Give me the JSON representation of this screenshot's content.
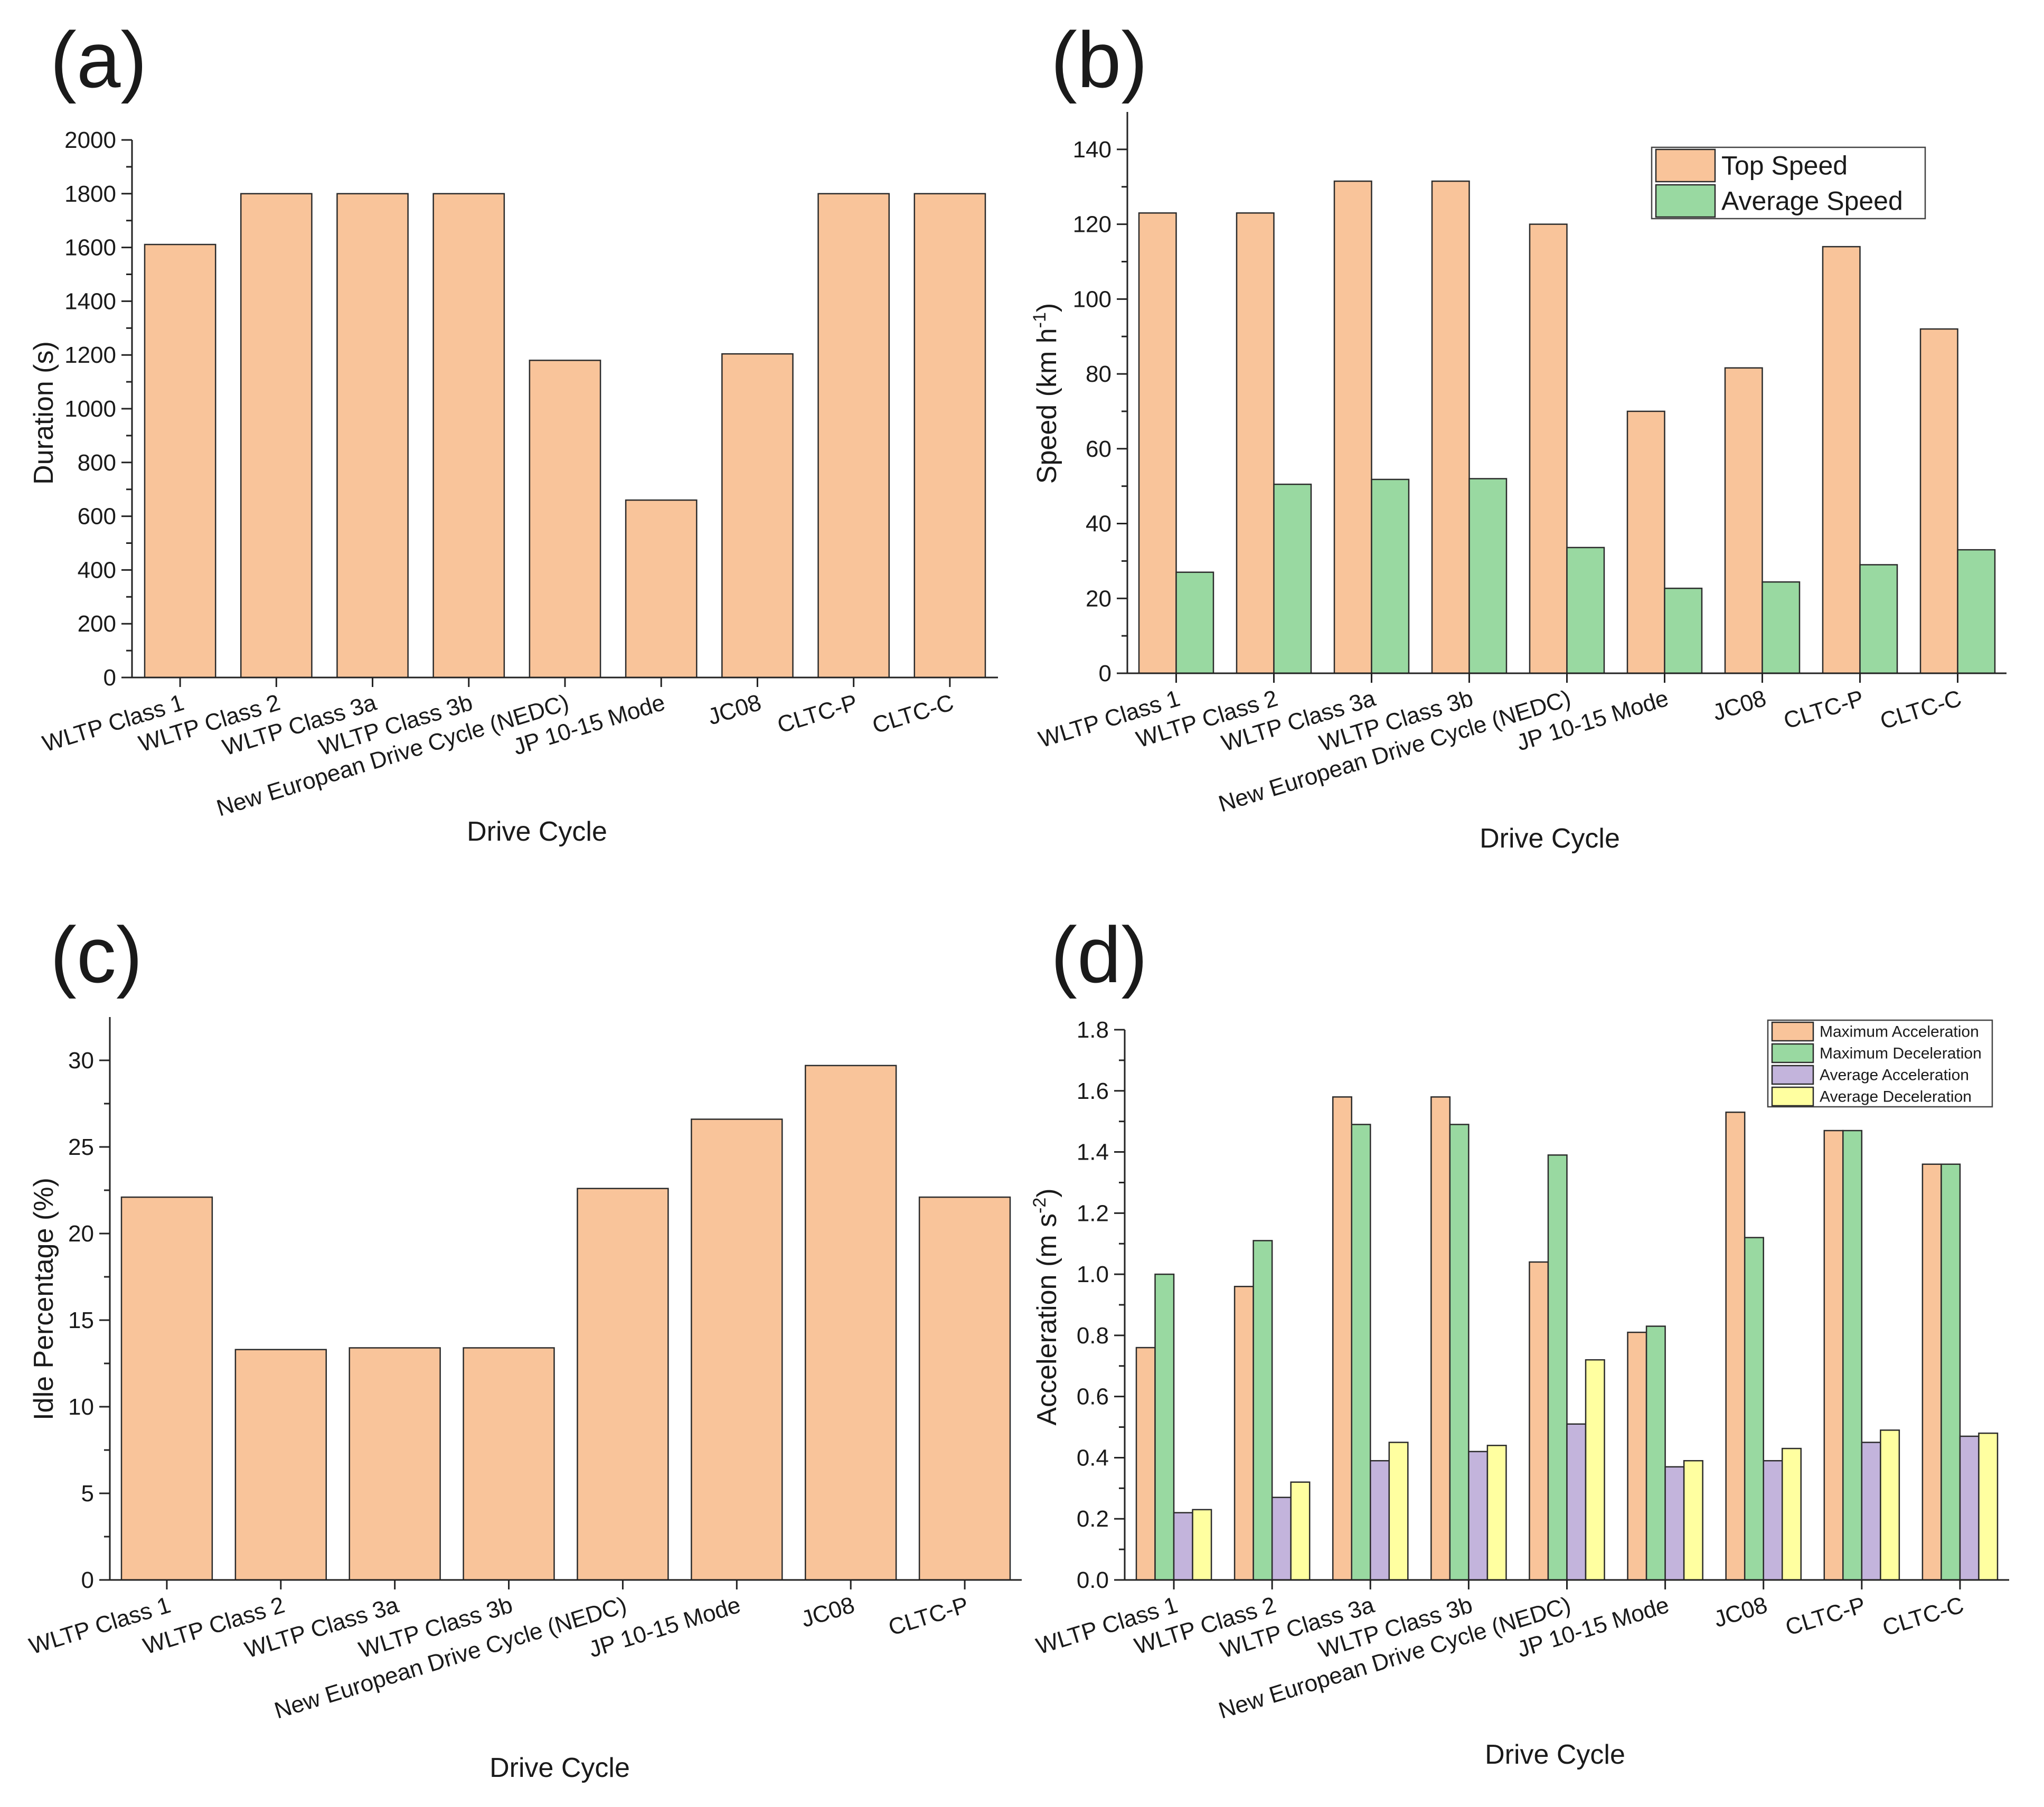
{
  "chart_data": [
    {
      "panel": "(a)",
      "type": "bar",
      "categories": [
        "WLTP Class 1",
        "WLTP Class 2",
        "WLTP Class 3a",
        "WLTP Class 3b",
        "New European Drive Cycle (NEDC)",
        "JP 10-15 Mode",
        "JC08",
        "CLTC-P",
        "CLTC-C"
      ],
      "series": [
        {
          "name": "Duration",
          "color": "#F9C49A",
          "values": [
            1611,
            1800,
            1800,
            1800,
            1180,
            660,
            1204,
            1800,
            1800
          ]
        }
      ],
      "xlabel": "Drive Cycle",
      "ylabel": "Duration (s)",
      "ylim": [
        0,
        2000
      ],
      "yticks": [
        "0",
        "200",
        "400",
        "600",
        "800",
        "1000",
        "1200",
        "1400",
        "1600",
        "1800",
        "2000"
      ],
      "ytick_step": 200,
      "legend": null
    },
    {
      "panel": "(b)",
      "type": "bar",
      "categories": [
        "WLTP Class 1",
        "WLTP Class 2",
        "WLTP Class 3a",
        "WLTP Class 3b",
        "New European Drive Cycle (NEDC)",
        "JP 10-15 Mode",
        "JC08",
        "CLTC-P",
        "CLTC-C"
      ],
      "series": [
        {
          "name": "Top Speed",
          "color": "#F9C49A",
          "values": [
            123,
            123,
            131.5,
            131.5,
            120,
            70,
            81.6,
            114,
            92
          ]
        },
        {
          "name": "Average Speed",
          "color": "#99D9A1",
          "values": [
            27,
            50.5,
            51.8,
            52,
            33.6,
            22.7,
            24.4,
            29,
            33
          ]
        }
      ],
      "xlabel": "Drive Cycle",
      "ylabel": "Speed (km h",
      "ylabel_sup": "-1",
      "ylabel_end": ")",
      "ylim": [
        0,
        150
      ],
      "yticks": [
        "0",
        "20",
        "40",
        "60",
        "80",
        "100",
        "120",
        "140"
      ],
      "ytick_step": 20,
      "legend": "top-right"
    },
    {
      "panel": "(c)",
      "type": "bar",
      "categories": [
        "WLTP Class 1",
        "WLTP Class 2",
        "WLTP Class 3a",
        "WLTP Class 3b",
        "New European Drive Cycle (NEDC)",
        "JP 10-15 Mode",
        "JC08",
        "CLTC-P"
      ],
      "series": [
        {
          "name": "Idle Percentage",
          "color": "#F9C49A",
          "values": [
            22.1,
            13.3,
            13.4,
            13.4,
            22.6,
            26.6,
            29.7,
            22.1
          ]
        }
      ],
      "xlabel": "Drive Cycle",
      "ylabel": "Idle Percentage (%)",
      "ylim": [
        0,
        32.5
      ],
      "yticks": [
        "0",
        "5",
        "10",
        "15",
        "20",
        "25",
        "30"
      ],
      "ytick_step": 5,
      "legend": null
    },
    {
      "panel": "(d)",
      "type": "bar",
      "categories": [
        "WLTP Class 1",
        "WLTP Class 2",
        "WLTP Class 3a",
        "WLTP Class 3b",
        "New European Drive Cycle (NEDC)",
        "JP 10-15 Mode",
        "JC08",
        "CLTC-P",
        "CLTC-C"
      ],
      "series": [
        {
          "name": "Maximum Acceleration",
          "color": "#F9C49A",
          "values": [
            0.76,
            0.96,
            1.58,
            1.58,
            1.04,
            0.81,
            1.53,
            1.47,
            1.36
          ]
        },
        {
          "name": "Maximum Deceleration",
          "color": "#99D9A1",
          "values": [
            1.0,
            1.11,
            1.49,
            1.49,
            1.39,
            0.83,
            1.12,
            1.47,
            1.36
          ]
        },
        {
          "name": "Average Acceleration",
          "color": "#C3B4DC",
          "values": [
            0.22,
            0.27,
            0.39,
            0.42,
            0.51,
            0.37,
            0.39,
            0.45,
            0.47
          ]
        },
        {
          "name": "Average Deceleration",
          "color": "#FFFFA0",
          "values": [
            0.23,
            0.32,
            0.45,
            0.44,
            0.72,
            0.39,
            0.43,
            0.49,
            0.48
          ]
        }
      ],
      "xlabel": "Drive Cycle",
      "ylabel": "Acceleration (m s",
      "ylabel_sup": "-2",
      "ylabel_end": ")",
      "ylim": [
        0,
        1.8
      ],
      "yticks": [
        "0.0",
        "0.2",
        "0.4",
        "0.6",
        "0.8",
        "1.0",
        "1.2",
        "1.4",
        "1.6",
        "1.8"
      ],
      "ytick_step": 0.2,
      "legend": "top-right"
    }
  ]
}
